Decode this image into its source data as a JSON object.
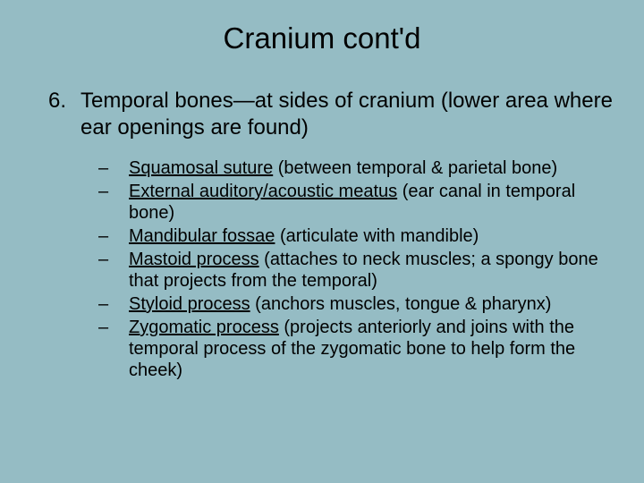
{
  "colors": {
    "background": "#95bcc4",
    "text": "#000000"
  },
  "typography": {
    "title_fontsize": 33,
    "body_fontsize": 24,
    "sub_fontsize": 20,
    "font_family": "Arial"
  },
  "title": "Cranium cont'd",
  "main": {
    "number": "6.",
    "text": "Temporal bones—at sides of cranium (lower area where ear openings are found)"
  },
  "sub_items": [
    {
      "underlined": "Squamosal suture",
      "rest": " (between temporal & parietal bone)"
    },
    {
      "underlined": "External auditory/acoustic meatus",
      "rest": " (ear canal in temporal bone)"
    },
    {
      "underlined": "Mandibular fossae",
      "rest": " (articulate with mandible)"
    },
    {
      "underlined": "Mastoid process",
      "rest": " (attaches to neck muscles; a spongy bone that projects from the temporal)"
    },
    {
      "underlined": "Styloid process",
      "rest": " (anchors muscles, tongue & pharynx)"
    },
    {
      "underlined": "Zygomatic process",
      "rest": " (projects anteriorly and joins with the temporal process of the zygomatic bone to help form the cheek)"
    }
  ]
}
